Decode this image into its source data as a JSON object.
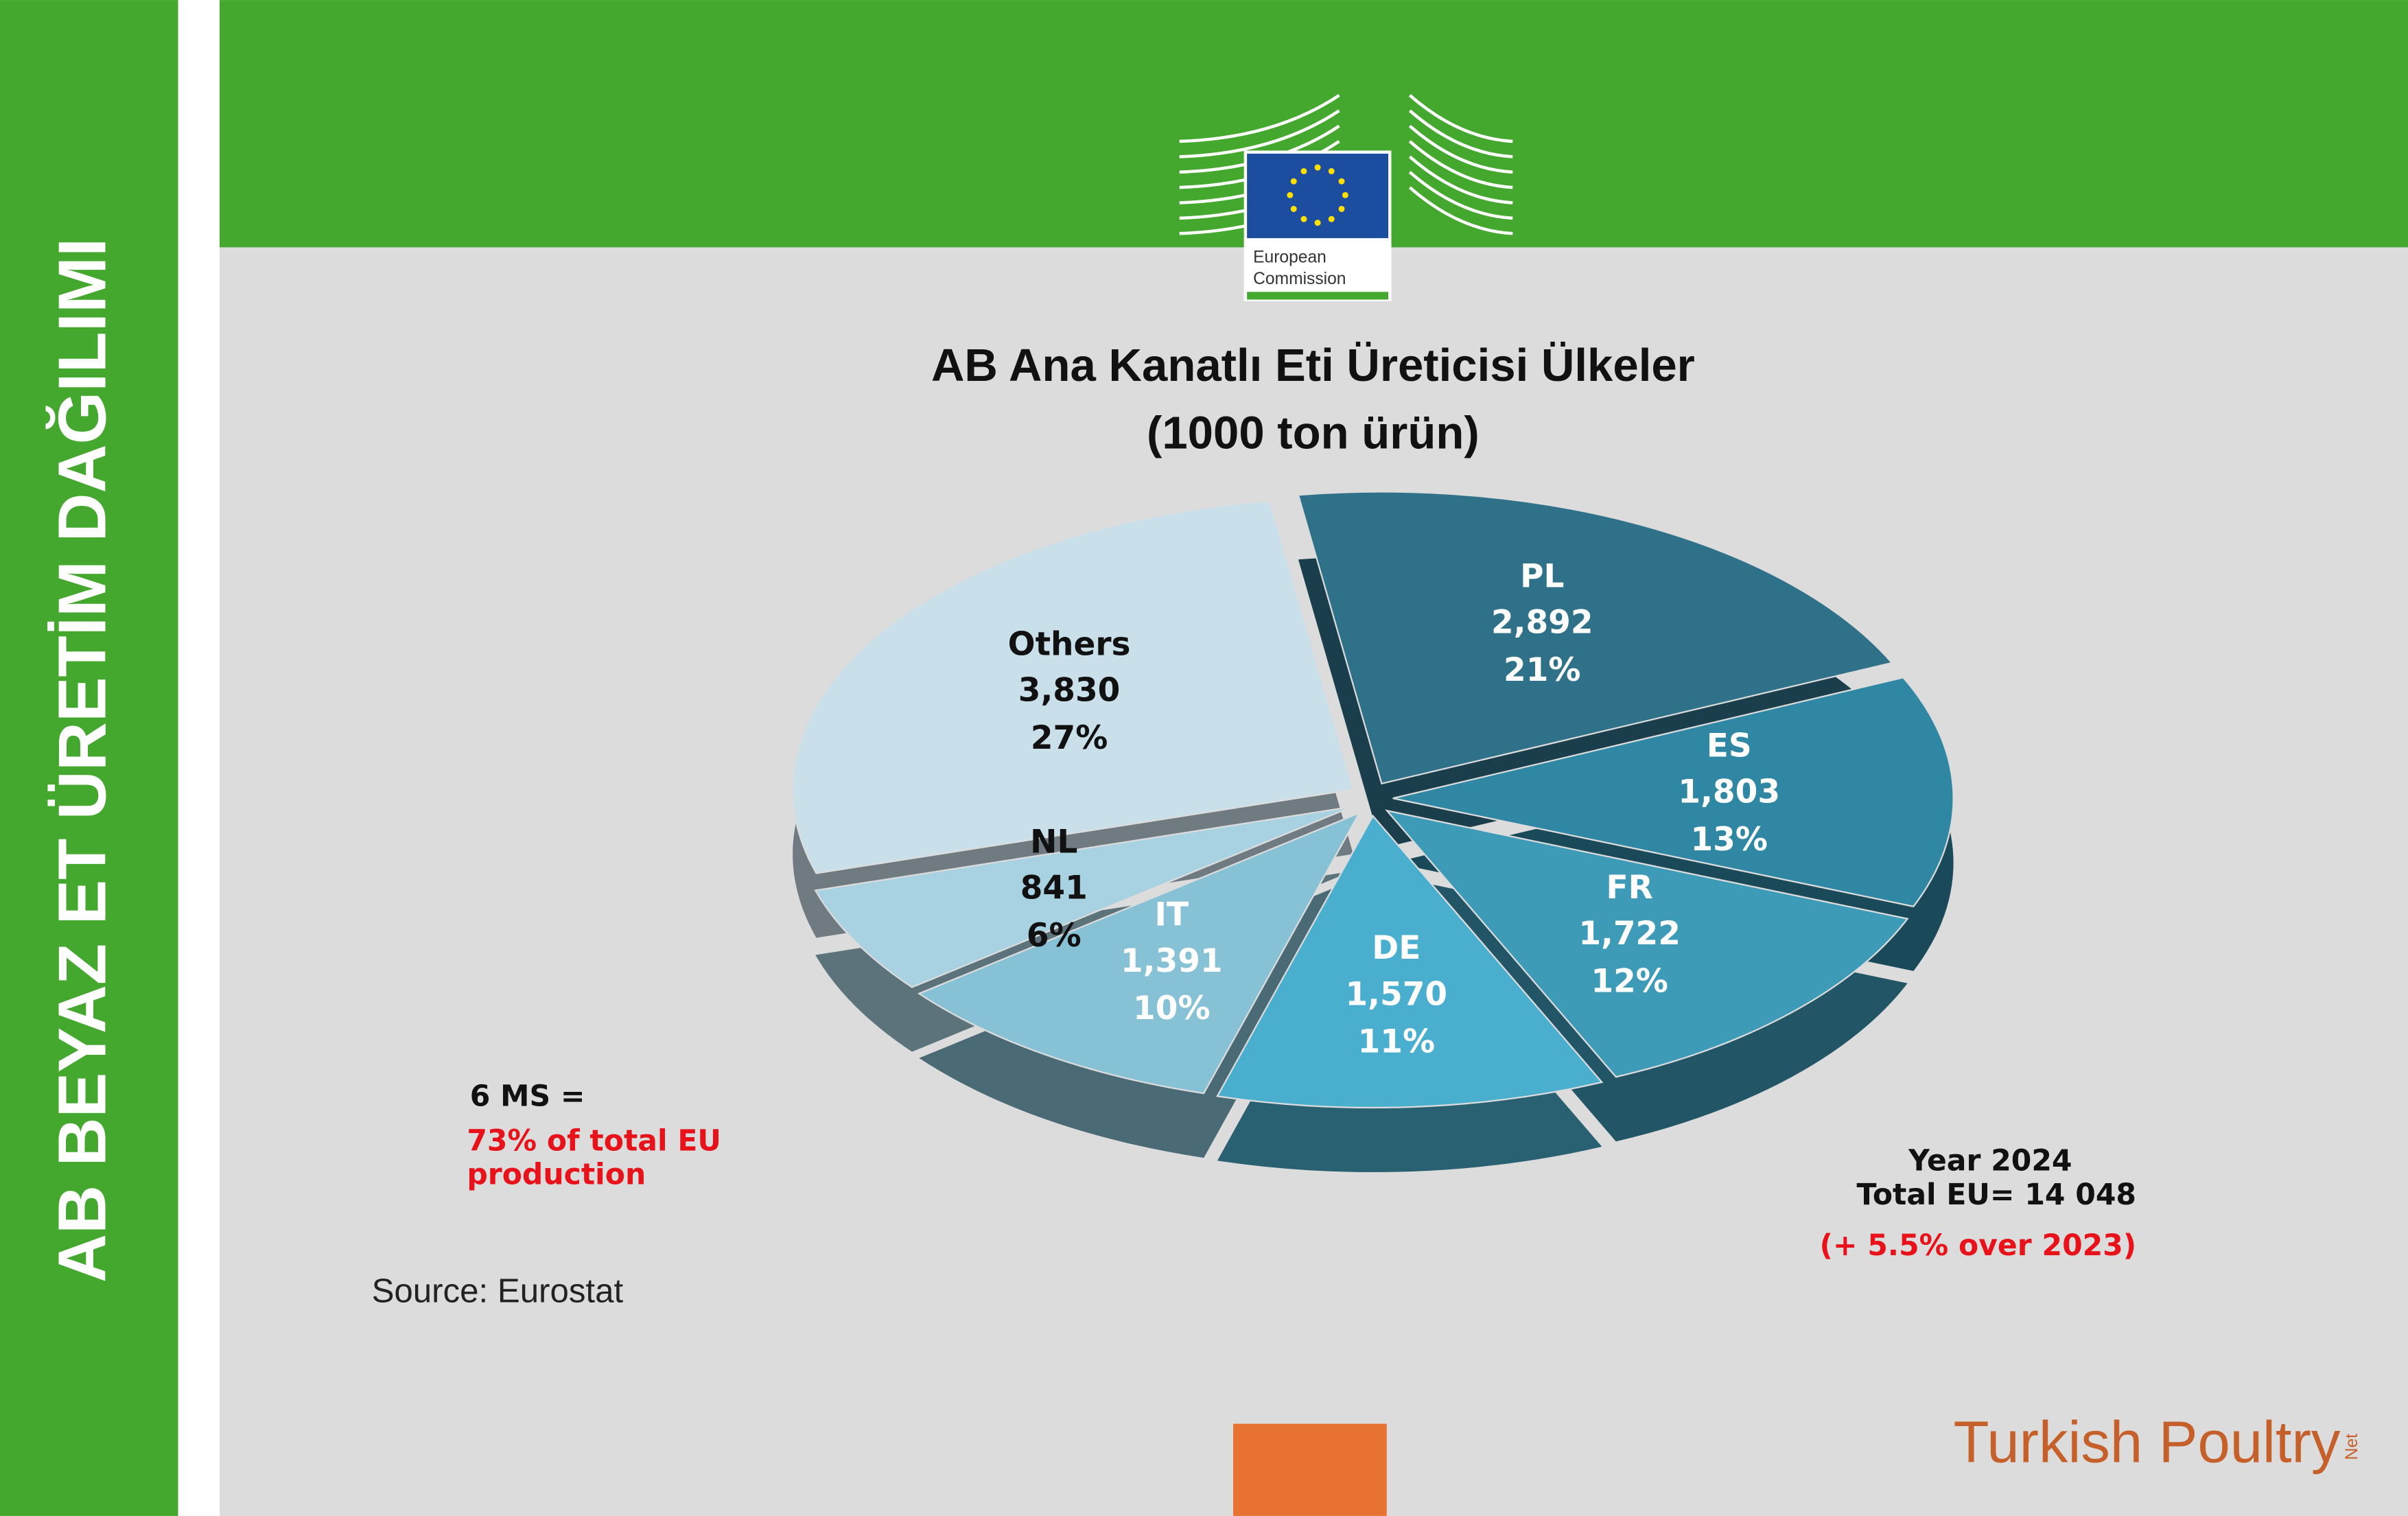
{
  "sidebar_title": "AB BEYAZ ET ÜRETİM DAĞILIMI",
  "logo": {
    "line1": "European",
    "line2": "Commission"
  },
  "brand": {
    "name": "Turkish Poultry",
    "suffix": "Net"
  },
  "chart_data": {
    "type": "pie",
    "title": "AB Ana Kanatlı Eti Üreticisi Ülkeler",
    "subtitle": "(1000 ton ürün)",
    "categories": [
      "PL",
      "ES",
      "FR",
      "DE",
      "IT",
      "NL",
      "Others"
    ],
    "values": [
      2892,
      1803,
      1722,
      1570,
      1391,
      841,
      3830
    ],
    "value_labels": [
      "2,892",
      "1,803",
      "1,722",
      "1,570",
      "1,391",
      "841",
      "3,830"
    ],
    "percentages": [
      21,
      13,
      12,
      11,
      10,
      6,
      27
    ],
    "percentage_labels": [
      "21%",
      "13%",
      "12%",
      "11%",
      "10%",
      "6%",
      "27%"
    ],
    "colors": [
      "#2f7189",
      "#2f87a4",
      "#3d9bb8",
      "#4aaecf",
      "#87c1d5",
      "#a8d1e1",
      "#c9e0ea"
    ],
    "label_colors": [
      "#ffffff",
      "#ffffff",
      "#ffffff",
      "#ffffff",
      "#ffffff",
      "#111111",
      "#111111"
    ],
    "annotations": {
      "ms": "6 MS  =",
      "share": "73% of total EU production",
      "source": "Source: Eurostat",
      "year": "Year 2024",
      "total": "Total EU= 14 048",
      "growth": "(+ 5.5% over 2023)"
    }
  }
}
